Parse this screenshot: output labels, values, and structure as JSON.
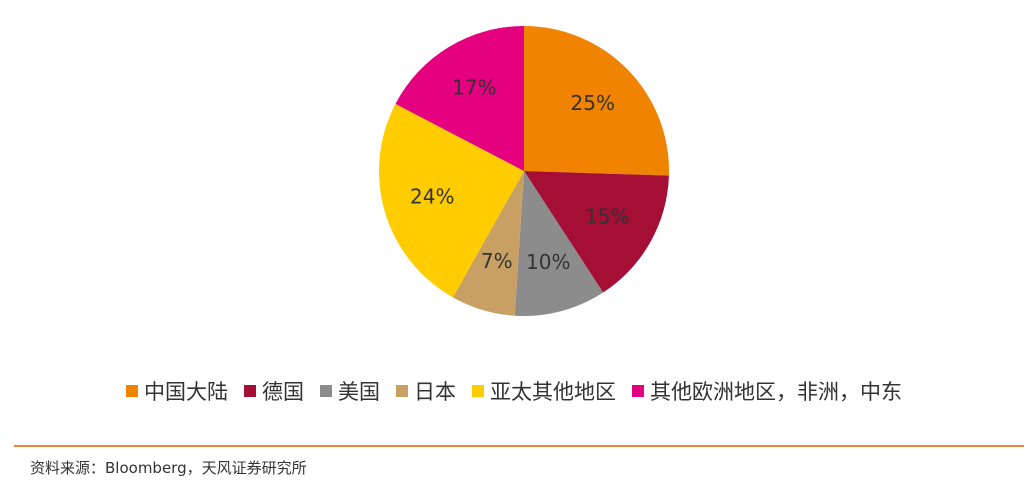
{
  "chart_data": {
    "type": "pie",
    "categories": [
      "中国大陆",
      "德国",
      "美国",
      "日本",
      "亚太其他地区",
      "其他欧洲地区，非洲，中东"
    ],
    "values": [
      25,
      15,
      10,
      7,
      24,
      17
    ],
    "value_labels": [
      "25%",
      "15%",
      "10%",
      "7%",
      "24%",
      "17%"
    ],
    "colors": [
      "#f08300",
      "#a50e35",
      "#8c8c8c",
      "#c9a063",
      "#ffcc00",
      "#e4007f"
    ],
    "legend": "bottom"
  },
  "source": "资料来源：Bloomberg，天风证券研究所"
}
